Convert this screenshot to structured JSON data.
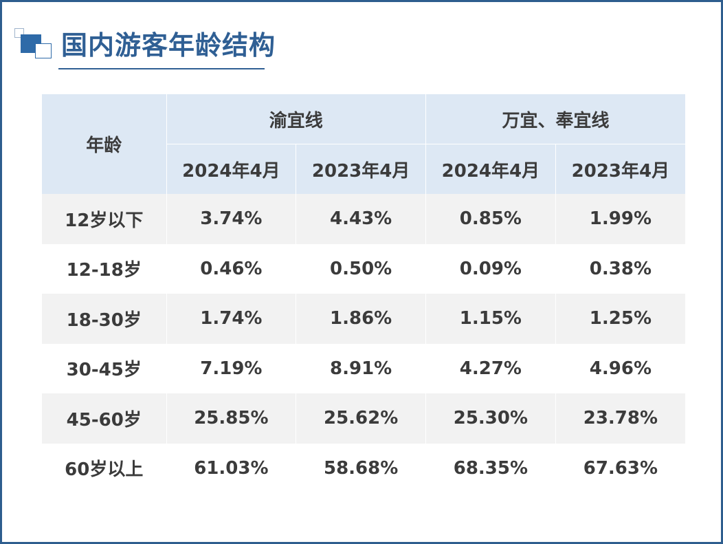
{
  "title": "国内游客年龄结构",
  "table": {
    "age_header": "年龄",
    "groups": [
      "渝宜线",
      "万宜、奉宜线"
    ],
    "periods": [
      "2024年4月",
      "2023年4月",
      "2024年4月",
      "2023年4月"
    ],
    "rows": [
      {
        "age": "12岁以下",
        "values": [
          "3.74%",
          "4.43%",
          "0.85%",
          "1.99%"
        ]
      },
      {
        "age": "12-18岁",
        "values": [
          "0.46%",
          "0.50%",
          "0.09%",
          "0.38%"
        ]
      },
      {
        "age": "18-30岁",
        "values": [
          "1.74%",
          "1.86%",
          "1.15%",
          "1.25%"
        ]
      },
      {
        "age": "30-45岁",
        "values": [
          "7.19%",
          "8.91%",
          "4.27%",
          "4.96%"
        ]
      },
      {
        "age": "45-60岁",
        "values": [
          "25.85%",
          "25.62%",
          "25.30%",
          "23.78%"
        ]
      },
      {
        "age": "60岁以上",
        "values": [
          "61.03%",
          "58.68%",
          "68.35%",
          "67.63%"
        ]
      }
    ]
  },
  "colors": {
    "frame_border": "#2e5d8e",
    "title_text": "#2f5f94",
    "header_fill": "#dde8f4",
    "row_shade": "#f2f2f2",
    "cell_text": "#3b3b3b"
  }
}
